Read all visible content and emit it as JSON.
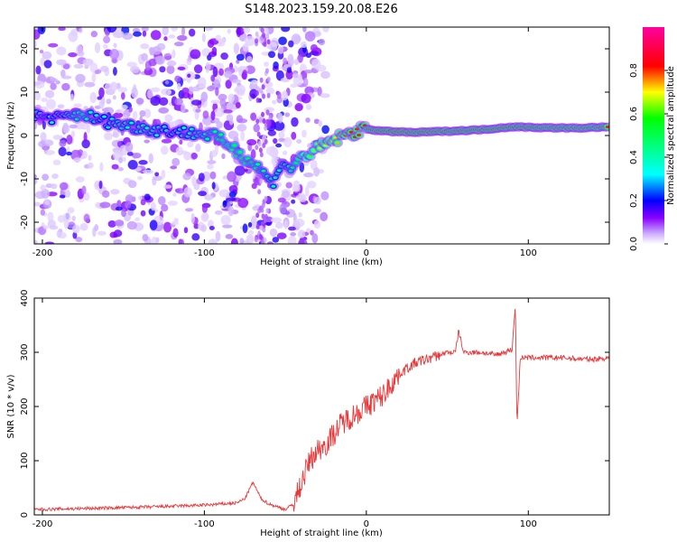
{
  "title": "S148.2023.159.20.08.E26",
  "chart_data": [
    {
      "type": "heatmap",
      "name": "spectrogram",
      "xlabel": "Height of straight line (km)",
      "ylabel": "Frequency (Hz)",
      "xlim": [
        -205,
        150
      ],
      "ylim": [
        -25,
        25
      ],
      "xticks": [
        -200,
        -100,
        0,
        100
      ],
      "yticks": [
        -20,
        -10,
        0,
        10,
        20
      ],
      "colorbar": {
        "label": "Normalized spectral amplitude",
        "range": [
          0,
          1
        ],
        "ticks": [
          0.0,
          0.2,
          0.4,
          0.6,
          0.8
        ],
        "colormap": [
          "#ffffff",
          "#8a00ff",
          "#0000ff",
          "#00ffff",
          "#00ff00",
          "#ffff00",
          "#ff0000",
          "#ff00a0"
        ]
      },
      "ridge": {
        "x": [
          -205,
          -190,
          -175,
          -165,
          -150,
          -135,
          -120,
          -105,
          -95,
          -85,
          -75,
          -65,
          -58,
          -52,
          -48,
          -40,
          -30,
          -20,
          -10,
          0,
          10,
          30,
          50,
          70,
          90,
          110,
          130,
          150
        ],
        "freq": [
          4.5,
          4.0,
          5.0,
          3.5,
          2.5,
          1.5,
          1.0,
          0.5,
          0.0,
          -2.0,
          -5.0,
          -8.0,
          -11.0,
          -6.0,
          -8.0,
          -5.0,
          -3.0,
          -1.0,
          0.5,
          1.5,
          1.0,
          0.7,
          1.0,
          1.3,
          2.0,
          1.8,
          1.7,
          2.0
        ],
        "amplitude": [
          0.35,
          0.4,
          0.5,
          0.4,
          0.45,
          0.45,
          0.4,
          0.45,
          0.5,
          0.55,
          0.55,
          0.5,
          0.45,
          0.45,
          0.45,
          0.6,
          0.7,
          0.75,
          0.85,
          0.85,
          0.95,
          0.95,
          0.9,
          0.9,
          0.9,
          0.85,
          0.85,
          0.85
        ]
      }
    },
    {
      "type": "line",
      "name": "snr",
      "xlabel": "Height of straight line (km)",
      "ylabel": "SNR (10 * v/v)",
      "xlim": [
        -205,
        150
      ],
      "ylim": [
        0,
        400
      ],
      "xticks": [
        -200,
        -100,
        0,
        100
      ],
      "yticks": [
        0,
        100,
        200,
        300,
        400
      ],
      "color": "#e8383a",
      "series": [
        {
          "x": [
            -205,
            -170,
            -130,
            -100,
            -90,
            -80,
            -75,
            -70,
            -65,
            -60,
            -55,
            -50,
            -45,
            -40,
            -35,
            -30,
            -25,
            -20,
            -15,
            -10,
            -5,
            0,
            5,
            10,
            15,
            20,
            25,
            30,
            35,
            40,
            45,
            50,
            55,
            57,
            60,
            70,
            80,
            85,
            90,
            92,
            93,
            95,
            100,
            110,
            120,
            130,
            140,
            150
          ],
          "values": [
            10,
            12,
            15,
            18,
            20,
            22,
            30,
            60,
            30,
            20,
            15,
            10,
            20,
            60,
            100,
            120,
            130,
            150,
            170,
            180,
            190,
            200,
            210,
            220,
            240,
            260,
            270,
            280,
            285,
            290,
            295,
            300,
            300,
            340,
            300,
            300,
            295,
            300,
            305,
            390,
            160,
            290,
            290,
            290,
            290,
            288,
            287,
            290
          ]
        }
      ]
    }
  ]
}
